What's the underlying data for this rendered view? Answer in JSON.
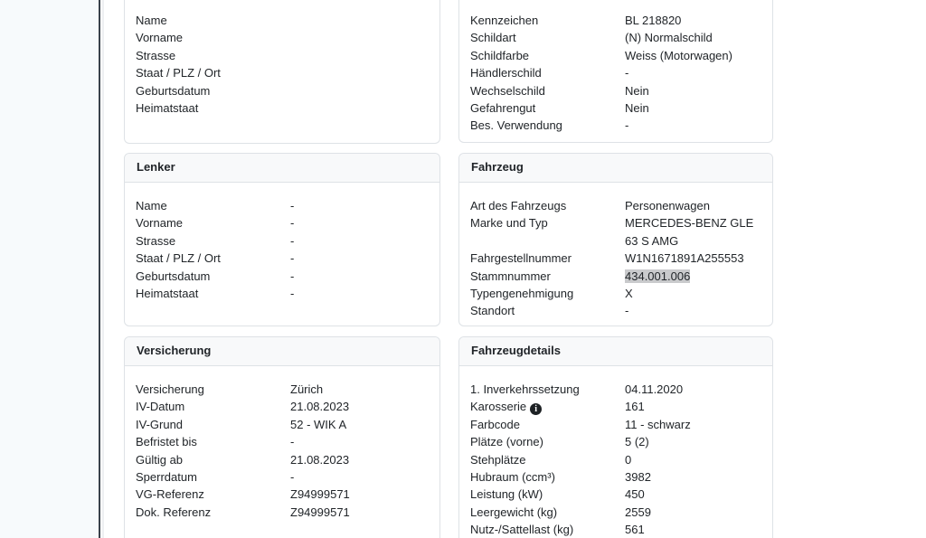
{
  "colors": {
    "text": "#212529",
    "panel_border": "#dee2e6",
    "panel_header_bg": "#f8f9fa",
    "selection_highlight_bg": "#c9cacc",
    "rail_bg": "#f7fafc",
    "rail_divider": "#3a424c",
    "info_icon_bg": "#1d2124"
  },
  "icons": {
    "info_icon_glyph": "i"
  },
  "panels": [
    {
      "id": "halter",
      "title": "",
      "rows": [
        {
          "label": "Name",
          "value": ""
        },
        {
          "label": "Vorname",
          "value": ""
        },
        {
          "label": "Strasse",
          "value": ""
        },
        {
          "label": "Staat / PLZ / Ort",
          "value": ""
        },
        {
          "label": "Geburtsdatum",
          "value": ""
        },
        {
          "label": "Heimatstaat",
          "value": ""
        }
      ]
    },
    {
      "id": "kennzeichen",
      "title": "",
      "rows": [
        {
          "label": "Kennzeichen",
          "value": "BL 218820"
        },
        {
          "label": "Schildart",
          "value": "(N) Normalschild"
        },
        {
          "label": "Schildfarbe",
          "value": "Weiss (Motorwagen)"
        },
        {
          "label": "Händlerschild",
          "value": "-"
        },
        {
          "label": "Wechselschild",
          "value": "Nein"
        },
        {
          "label": "Gefahrengut",
          "value": "Nein"
        },
        {
          "label": "Bes. Verwendung",
          "value": "-"
        }
      ]
    },
    {
      "id": "lenker",
      "title": "Lenker",
      "rows": [
        {
          "label": "Name",
          "value": "-"
        },
        {
          "label": "Vorname",
          "value": "-"
        },
        {
          "label": "Strasse",
          "value": "-"
        },
        {
          "label": "Staat / PLZ / Ort",
          "value": "-"
        },
        {
          "label": "Geburtsdatum",
          "value": "-"
        },
        {
          "label": "Heimatstaat",
          "value": "-"
        }
      ]
    },
    {
      "id": "fahrzeug",
      "title": "Fahrzeug",
      "rows": [
        {
          "label": "Art des Fahrzeugs",
          "value": "Personenwagen"
        },
        {
          "label": "Marke und Typ",
          "value": "MERCEDES-BENZ GLE 63 S AMG"
        },
        {
          "label": "Fahrgestellnummer",
          "value": "W1N1671891A255553"
        },
        {
          "label": "Stammnummer",
          "value": "434.001.006",
          "highlighted": true
        },
        {
          "label": "Typengenehmigung",
          "value": "X"
        },
        {
          "label": "Standort",
          "value": "-"
        }
      ]
    },
    {
      "id": "versicherung",
      "title": "Versicherung",
      "rows": [
        {
          "label": "Versicherung",
          "value": "Zürich"
        },
        {
          "label": "IV-Datum",
          "value": "21.08.2023"
        },
        {
          "label": "IV-Grund",
          "value": "52 - WIK A"
        },
        {
          "label": "Befristet bis",
          "value": "-"
        },
        {
          "label": "Gültig ab",
          "value": "21.08.2023"
        },
        {
          "label": "Sperrdatum",
          "value": "-"
        },
        {
          "label": "VG-Referenz",
          "value": "Z94999571"
        },
        {
          "label": "Dok. Referenz",
          "value": "Z94999571"
        }
      ]
    },
    {
      "id": "fahrzeugdetails",
      "title": "Fahrzeugdetails",
      "rows": [
        {
          "label": "1. Inverkehrssetzung",
          "value": "04.11.2020"
        },
        {
          "label": "Karosserie",
          "value": "161",
          "info_icon": true
        },
        {
          "label": "Farbcode",
          "value": "11 - schwarz"
        },
        {
          "label": "Plätze (vorne)",
          "value": "5 (2)"
        },
        {
          "label": "Stehplätze",
          "value": "0"
        },
        {
          "label": "Hubraum (ccm³)",
          "value": "3982"
        },
        {
          "label": "Leistung (kW)",
          "value": "450"
        },
        {
          "label": "Leergewicht (kg)",
          "value": "2559"
        },
        {
          "label": "Nutz-/Sattellast (kg)",
          "value": "561"
        }
      ]
    }
  ]
}
